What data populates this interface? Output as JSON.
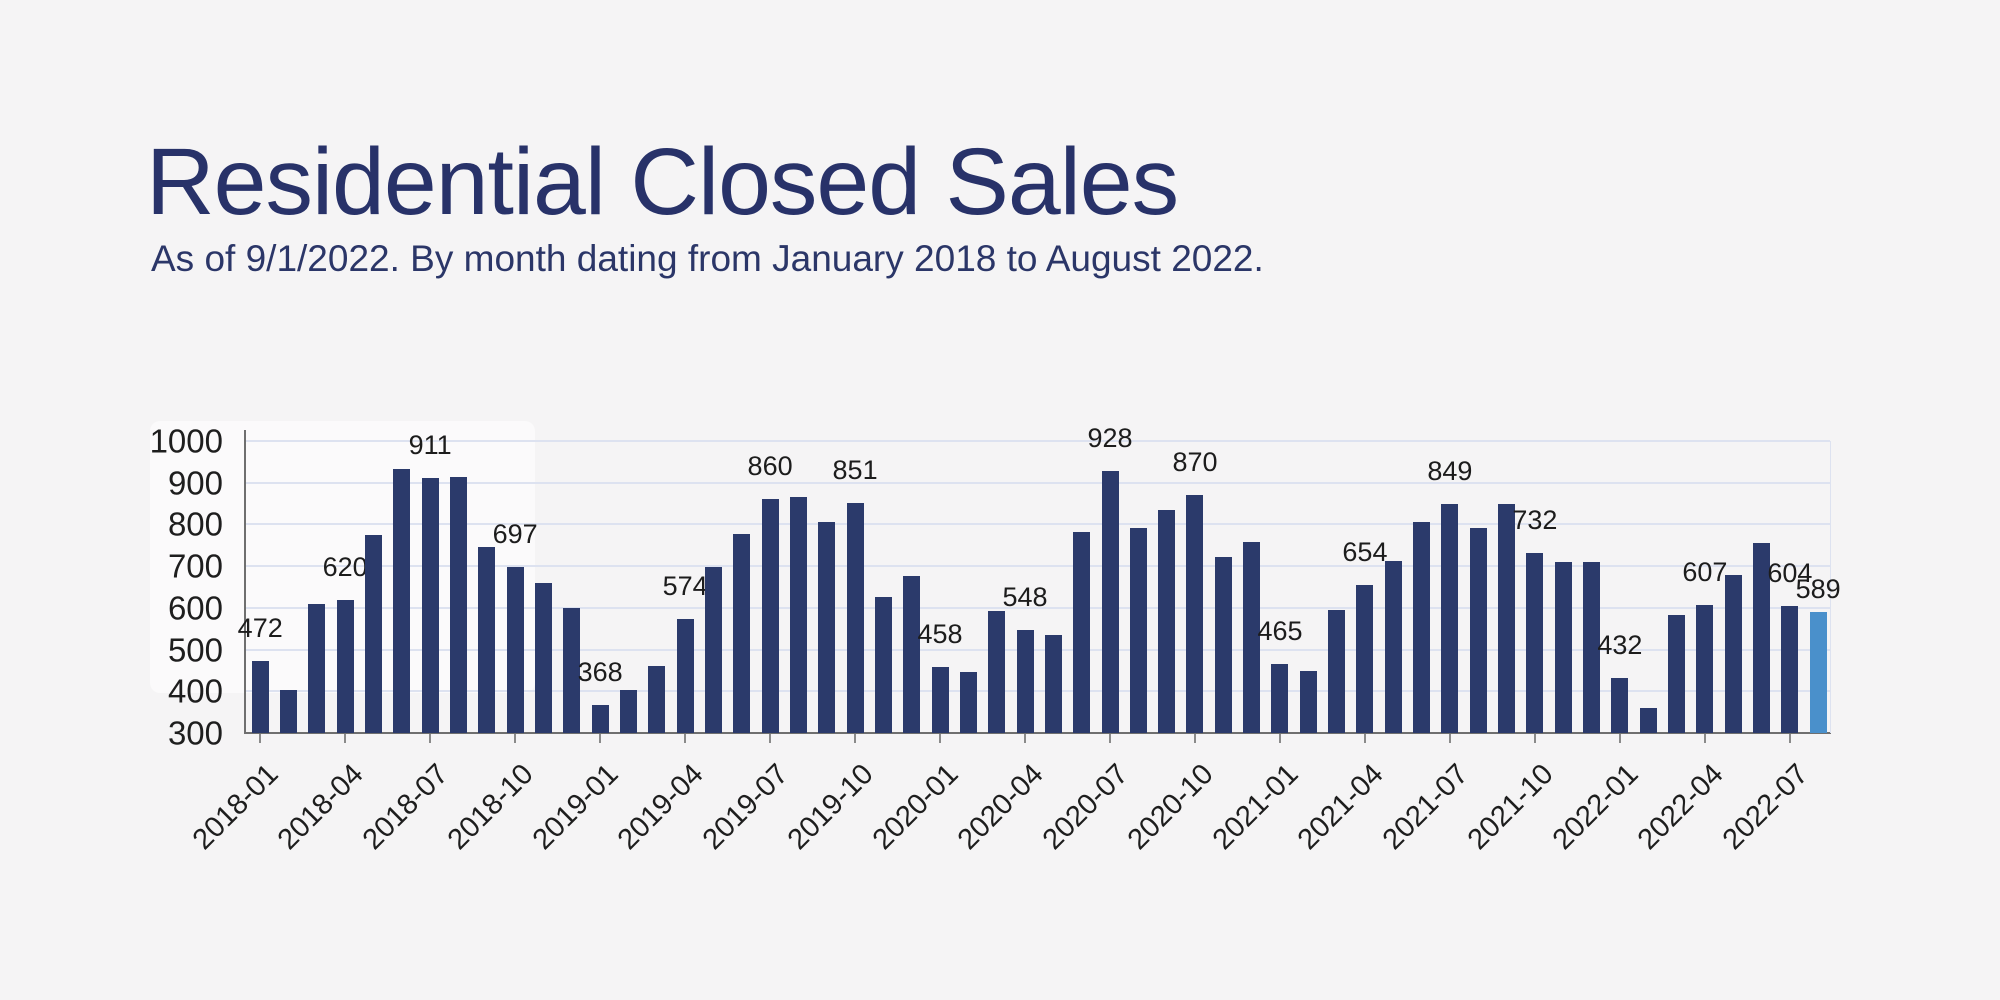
{
  "title": "Residential Closed Sales",
  "subtitle": "As of 9/1/2022. By month dating from January 2018 to August 2022.",
  "colors": {
    "heading_text": "#283269",
    "bar": "#2b3a6b",
    "bar_highlight": "#4a90cb",
    "gridline": "#dde2f0",
    "axis_line": "#6f6f6f",
    "tick_text": "#1e1e1e",
    "background": "#f5f4f5"
  },
  "chart_data": {
    "type": "bar",
    "title": "Residential Closed Sales",
    "subtitle": "As of 9/1/2022. By month dating from January 2018 to August 2022.",
    "x": [
      "2018-01",
      "2018-02",
      "2018-03",
      "2018-04",
      "2018-05",
      "2018-06",
      "2018-07",
      "2018-08",
      "2018-09",
      "2018-10",
      "2018-11",
      "2018-12",
      "2019-01",
      "2019-02",
      "2019-03",
      "2019-04",
      "2019-05",
      "2019-06",
      "2019-07",
      "2019-08",
      "2019-09",
      "2019-10",
      "2019-11",
      "2019-12",
      "2020-01",
      "2020-02",
      "2020-03",
      "2020-04",
      "2020-05",
      "2020-06",
      "2020-07",
      "2020-08",
      "2020-09",
      "2020-10",
      "2020-11",
      "2020-12",
      "2021-01",
      "2021-02",
      "2021-03",
      "2021-04",
      "2021-05",
      "2021-06",
      "2021-07",
      "2021-08",
      "2021-09",
      "2021-10",
      "2021-11",
      "2021-12",
      "2022-01",
      "2022-02",
      "2022-03",
      "2022-04",
      "2022-05",
      "2022-06",
      "2022-07",
      "2022-08"
    ],
    "values": [
      472,
      403,
      609,
      620,
      775,
      934,
      911,
      914,
      746,
      697,
      659,
      599,
      368,
      403,
      461,
      574,
      698,
      777,
      860,
      866,
      807,
      851,
      627,
      676,
      458,
      446,
      592,
      548,
      535,
      781,
      928,
      791,
      835,
      870,
      721,
      759,
      465,
      448,
      596,
      654,
      713,
      806,
      849,
      792,
      848,
      732,
      711,
      710,
      432,
      360,
      582,
      607,
      678,
      755,
      604,
      589
    ],
    "shown_value_labels": [
      472,
      620,
      911,
      697,
      368,
      574,
      860,
      851,
      458,
      548,
      928,
      870,
      465,
      654,
      849,
      732,
      432,
      607,
      604,
      589
    ],
    "label_every_nth_bar": 3,
    "label_last_bar": true,
    "highlight_index": 55,
    "ylim": [
      300,
      1000
    ],
    "y_ticks": [
      300,
      400,
      500,
      600,
      700,
      800,
      900,
      1000
    ],
    "x_tick_labels": [
      "2018-01",
      "2018-04",
      "2018-07",
      "2018-10",
      "2019-01",
      "2019-04",
      "2019-07",
      "2019-10",
      "2020-01",
      "2020-04",
      "2020-07",
      "2020-10",
      "2021-01",
      "2021-04",
      "2021-07",
      "2021-10",
      "2022-01",
      "2022-04",
      "2022-07"
    ],
    "grid": "horizontal",
    "legend": "none"
  }
}
